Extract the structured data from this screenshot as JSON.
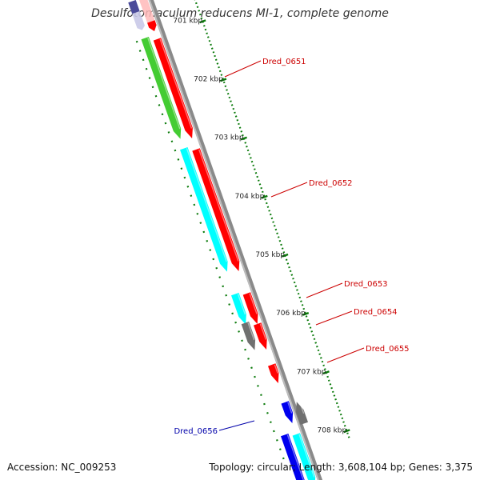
{
  "title": "Desulfotomaculum reducens MI-1, complete genome",
  "accession": "Accession: NC_009253",
  "summary": "Topology: circular; Length: 3,608,104 bp; Genes: 3,375",
  "scale_ticks": [
    "701 kbp",
    "702 kbp",
    "703 kbp",
    "704 kbp",
    "705 kbp",
    "706 kbp",
    "707 kbp",
    "708 kbp"
  ],
  "genes": [
    {
      "label": "Dred_0651",
      "strand": "forward"
    },
    {
      "label": "Dred_0652",
      "strand": "forward"
    },
    {
      "label": "Dred_0653",
      "strand": "forward"
    },
    {
      "label": "Dred_0654",
      "strand": "forward"
    },
    {
      "label": "Dred_0655",
      "strand": "forward"
    },
    {
      "label": "Dred_0656",
      "strand": "reverse"
    }
  ],
  "colors": {
    "red": "#ff0000",
    "green": "#44cc33",
    "cyan": "#00ffff",
    "grey": "#707070",
    "blue": "#0000ee",
    "navy": "#4b4b9a",
    "backbone": "#8a8a8a",
    "tick": "#0a7a0a",
    "label_forward": "#cc0000",
    "label_reverse": "#0000aa"
  }
}
